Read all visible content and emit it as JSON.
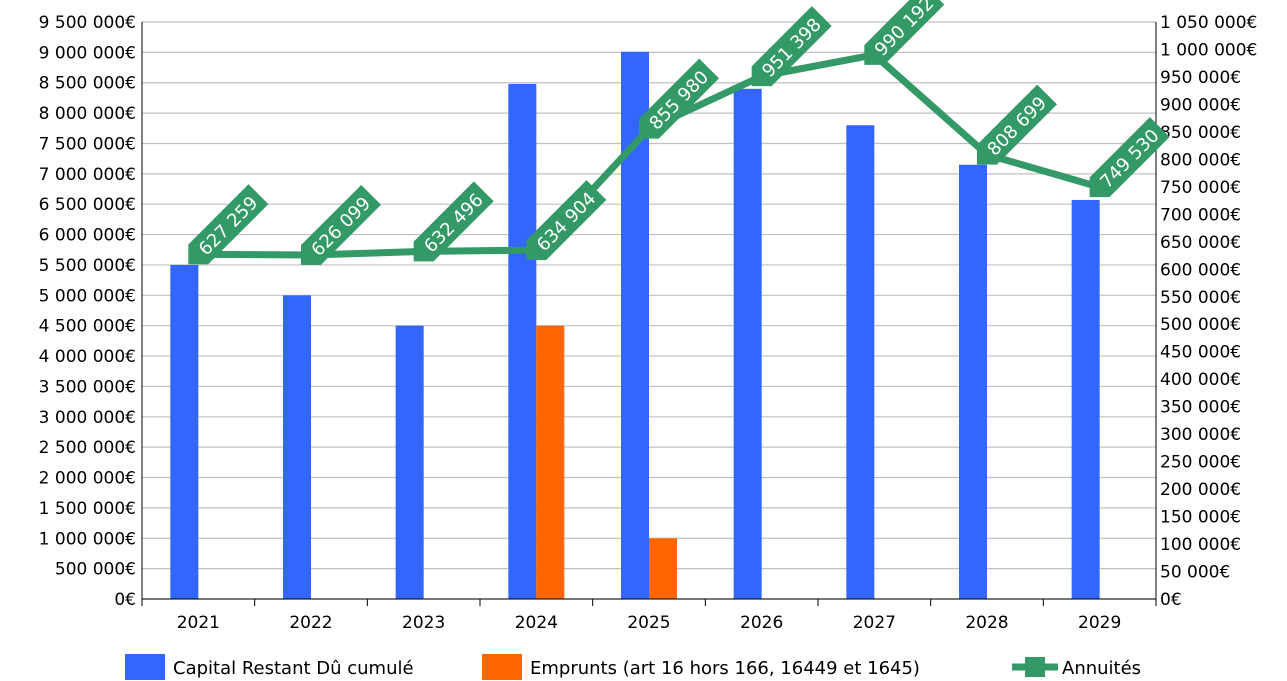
{
  "chart_data": {
    "type": "bar",
    "categories": [
      "2021",
      "2022",
      "2023",
      "2024",
      "2025",
      "2026",
      "2027",
      "2028",
      "2029"
    ],
    "series": [
      {
        "name": "Capital Restant Dû cumulé",
        "type": "bar",
        "axis": "left",
        "color": "#3366ff",
        "values": [
          5500000,
          5000000,
          4500000,
          8480000,
          9010000,
          8400000,
          7800000,
          7150000,
          6570000
        ]
      },
      {
        "name": "Emprunts (art 16 hors 166, 16449 et 1645)",
        "type": "bar",
        "axis": "left",
        "color": "#ff6600",
        "values": [
          0,
          0,
          0,
          4500000,
          1000000,
          0,
          0,
          0,
          0
        ]
      },
      {
        "name": "Annuités",
        "type": "line",
        "axis": "right",
        "color": "#339966",
        "marker": "square",
        "values": [
          627259,
          626099,
          632496,
          634904,
          855980,
          951398,
          990192,
          808699,
          749530
        ],
        "data_labels": [
          "627 259",
          "626 099",
          "632 496",
          "634 904",
          "855 980",
          "951 398",
          "990 192",
          "808 699",
          "749 530"
        ]
      }
    ],
    "y_left": {
      "ylim": [
        0,
        9500000
      ],
      "ticks": [
        "0€",
        "500 000€",
        "1 000 000€",
        "1 500 000€",
        "2 000 000€",
        "2 500 000€",
        "3 000 000€",
        "3 500 000€",
        "4 000 000€",
        "4 500 000€",
        "5 000 000€",
        "5 500 000€",
        "6 000 000€",
        "6 500 000€",
        "7 000 000€",
        "7 500 000€",
        "8 000 000€",
        "8 500 000€",
        "9 000 000€",
        "9 500 000€"
      ]
    },
    "y_right": {
      "ylim": [
        0,
        1050000
      ],
      "ticks": [
        "0€",
        "50 000€",
        "100 000€",
        "150 000€",
        "200 000€",
        "250 000€",
        "300 000€",
        "350 000€",
        "400 000€",
        "450 000€",
        "500 000€",
        "550 000€",
        "600 000€",
        "650 000€",
        "700 000€",
        "750 000€",
        "800 000€",
        "850 000€",
        "900 000€",
        "950 000€",
        "1 000 000€",
        "1 050 000€"
      ]
    },
    "grid": true,
    "legend_position": "bottom",
    "title": "",
    "xlabel": "",
    "ylabel": ""
  }
}
